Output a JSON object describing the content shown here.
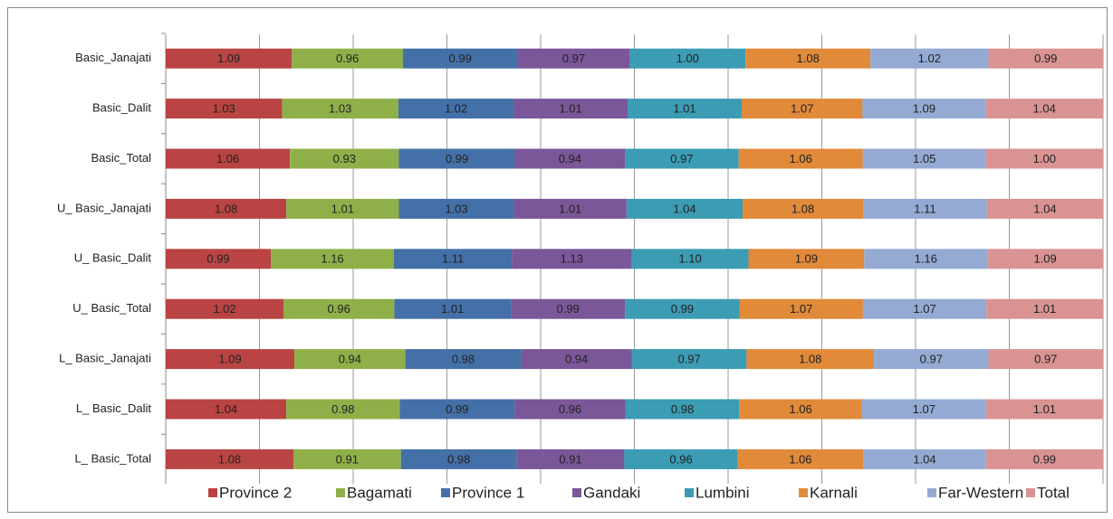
{
  "chart_data": {
    "type": "bar",
    "orientation": "horizontal",
    "stacked": "percent",
    "categories": [
      "Basic_Janajati",
      "Basic_Dalit",
      "Basic_Total",
      "U_ Basic_Janajati",
      "U_ Basic_Dalit",
      "U_ Basic_Total",
      "L_ Basic_Janajati",
      "L_ Basic_Dalit",
      "L_ Basic_Total"
    ],
    "series": [
      {
        "name": "Province 2",
        "color": "#b94443",
        "values": [
          1.09,
          1.03,
          1.06,
          1.08,
          0.99,
          1.02,
          1.09,
          1.04,
          1.08
        ],
        "value_labels": [
          "1.09",
          "1.03",
          "1.06",
          "1.08",
          "0.99",
          "1.02",
          "1.09",
          "1.04",
          "1.08"
        ]
      },
      {
        "name": "Bagamati",
        "color": "#8fb049",
        "values": [
          0.96,
          1.03,
          0.93,
          1.01,
          1.16,
          0.96,
          0.94,
          0.98,
          0.91
        ],
        "value_labels": [
          "0.96",
          "1.03",
          "0.93",
          "1.01",
          "1.16",
          "0.96",
          "0.94",
          "0.98",
          "0.91"
        ]
      },
      {
        "name": "Province 1",
        "color": "#4470a8",
        "values": [
          0.99,
          1.02,
          0.99,
          1.03,
          1.11,
          1.01,
          0.98,
          0.99,
          0.98
        ],
        "value_labels": [
          "0.99",
          "1.02",
          "0.99",
          "1.03",
          "1.11",
          "1.01",
          "0.98",
          "0.99",
          "0.98"
        ]
      },
      {
        "name": "Gandaki",
        "color": "#7a5798",
        "values": [
          0.97,
          1.01,
          0.94,
          1.01,
          1.13,
          0.99,
          0.94,
          0.96,
          0.91
        ],
        "value_labels": [
          "0.97",
          "1.01",
          "0.94",
          "1.01",
          "1.13",
          "0.99",
          "0.94",
          "0.96",
          "0.91"
        ]
      },
      {
        "name": "Lumbini",
        "color": "#3b9cb3",
        "values": [
          1,
          1.01,
          0.97,
          1.04,
          1.1,
          0.99,
          0.97,
          0.98,
          0.96
        ],
        "value_labels": [
          "1.00",
          "1.01",
          "0.97",
          "1.04",
          "1.10",
          "0.99",
          "0.97",
          "0.98",
          "0.96"
        ]
      },
      {
        "name": "Karnali",
        "color": "#e08a3a",
        "values": [
          1.08,
          1.07,
          1.06,
          1.08,
          1.09,
          1.07,
          1.08,
          1.06,
          1.06
        ],
        "value_labels": [
          "1.08",
          "1.07",
          "1.06",
          "1.08",
          "1.09",
          "1.07",
          "1.08",
          "1.06",
          "1.06"
        ]
      },
      {
        "name": "Far-Western",
        "color": "#94aad3",
        "values": [
          1.02,
          1.09,
          1.05,
          1.11,
          1.16,
          1.07,
          0.97,
          1.07,
          1.04
        ],
        "value_labels": [
          "1.02",
          "1.09",
          "1.05",
          "1.11",
          "1.16",
          "1.07",
          "0.97",
          "1.07",
          "1.04"
        ]
      },
      {
        "name": "Total",
        "color": "#d99393",
        "values": [
          0.99,
          1.04,
          1,
          1.04,
          1.09,
          1.01,
          0.97,
          1.01,
          0.99
        ],
        "value_labels": [
          "0.99",
          "1.04",
          "1.00",
          "1.04",
          "1.09",
          "1.01",
          "0.97",
          "1.01",
          "0.99"
        ]
      }
    ],
    "xlim": [
      0,
      100
    ],
    "xticks": [
      0,
      10,
      20,
      30,
      40,
      50,
      60,
      70,
      80,
      90,
      100
    ],
    "tick_labels": false,
    "grid": true,
    "legend": "bottom"
  }
}
